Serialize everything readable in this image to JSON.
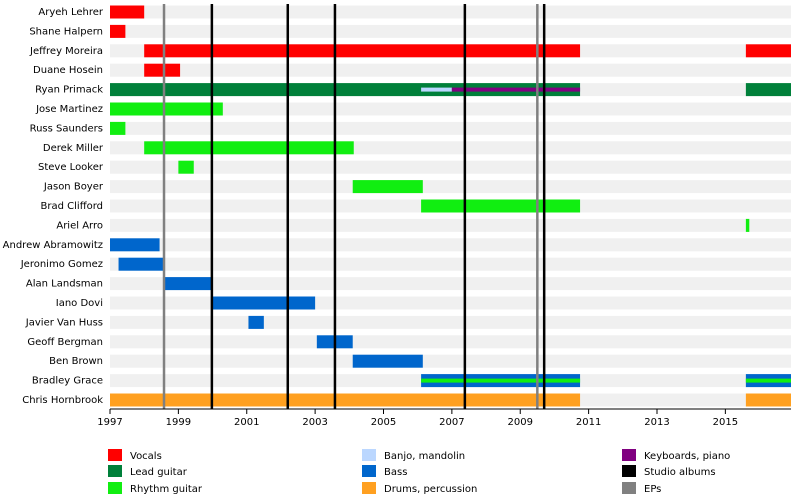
{
  "chart_data": {
    "type": "timeline",
    "xlim": [
      1997,
      2016.92
    ],
    "xticks": [
      1997,
      1999,
      2001,
      2003,
      2005,
      2007,
      2009,
      2011,
      2013,
      2015
    ],
    "roles": [
      {
        "name": "Vocals",
        "color": "#ff0000"
      },
      {
        "name": "Lead guitar",
        "color": "#00803a"
      },
      {
        "name": "Rhythm guitar",
        "color": "#11ee11"
      },
      {
        "name": "Banjo, mandolin",
        "color": "#bbd7ff"
      },
      {
        "name": "Bass",
        "color": "#0066cc"
      },
      {
        "name": "Drums, percussion",
        "color": "#ffa020"
      },
      {
        "name": "Keyboards, piano",
        "color": "#800080"
      }
    ],
    "lines": [
      {
        "name": "Studio albums",
        "color": "#000000",
        "values": [
          1999.98,
          2002.2,
          2003.58,
          2007.38,
          2009.7
        ]
      },
      {
        "name": "EPs",
        "color": "#808080",
        "values": [
          1998.58,
          2009.5
        ]
      }
    ],
    "members": [
      {
        "name": "Aryeh Lehrer",
        "periods": [
          {
            "role": "Vocals",
            "start": 1997,
            "end": 1998
          }
        ]
      },
      {
        "name": "Shane Halpern",
        "periods": [
          {
            "role": "Vocals",
            "start": 1997,
            "end": 1997.45
          }
        ]
      },
      {
        "name": "Jeffrey Moreira",
        "periods": [
          {
            "role": "Vocals",
            "start": 1998,
            "end": 2010.75
          },
          {
            "role": "Vocals",
            "start": 2015.6,
            "end": 2016.92
          }
        ]
      },
      {
        "name": "Duane Hosein",
        "periods": [
          {
            "role": "Vocals",
            "start": 1998,
            "end": 1999.05
          }
        ]
      },
      {
        "name": "Ryan Primack",
        "periods": [
          {
            "role": "Lead guitar",
            "start": 1997,
            "end": 2010.75
          },
          {
            "role": "Lead guitar",
            "start": 2015.6,
            "end": 2016.92
          },
          {
            "role": "Banjo, mandolin",
            "start": 2006.1,
            "end": 2007
          },
          {
            "role": "Keyboards, piano",
            "start": 2007,
            "end": 2010.75
          }
        ]
      },
      {
        "name": "Jose Martinez",
        "periods": [
          {
            "role": "Rhythm guitar",
            "start": 1997,
            "end": 2000.3
          }
        ]
      },
      {
        "name": "Russ Saunders",
        "periods": [
          {
            "role": "Rhythm guitar",
            "start": 1997,
            "end": 1997.45
          }
        ]
      },
      {
        "name": "Derek Miller",
        "periods": [
          {
            "role": "Rhythm guitar",
            "start": 1998,
            "end": 2004.13
          }
        ]
      },
      {
        "name": "Steve Looker",
        "periods": [
          {
            "role": "Rhythm guitar",
            "start": 1999,
            "end": 1999.45
          }
        ]
      },
      {
        "name": "Jason Boyer",
        "periods": [
          {
            "role": "Rhythm guitar",
            "start": 2004.1,
            "end": 2006.15
          }
        ]
      },
      {
        "name": "Brad Clifford",
        "periods": [
          {
            "role": "Rhythm guitar",
            "start": 2006.1,
            "end": 2010.75
          }
        ]
      },
      {
        "name": "Ariel Arro",
        "periods": [
          {
            "role": "Rhythm guitar",
            "start": 2015.6,
            "end": 2015.7
          }
        ]
      },
      {
        "name": "Andrew Abramowitz",
        "periods": [
          {
            "role": "Bass",
            "start": 1997,
            "end": 1998.45
          }
        ]
      },
      {
        "name": "Jeronimo Gomez",
        "periods": [
          {
            "role": "Bass",
            "start": 1997.25,
            "end": 1998.6
          }
        ]
      },
      {
        "name": "Alan Landsman",
        "periods": [
          {
            "role": "Bass",
            "start": 1998.6,
            "end": 2000
          }
        ]
      },
      {
        "name": "Iano Dovi",
        "periods": [
          {
            "role": "Bass",
            "start": 2000,
            "end": 2003
          }
        ]
      },
      {
        "name": "Javier Van Huss",
        "periods": [
          {
            "role": "Bass",
            "start": 2001.05,
            "end": 2001.5
          }
        ]
      },
      {
        "name": "Geoff Bergman",
        "periods": [
          {
            "role": "Bass",
            "start": 2003.05,
            "end": 2004.1
          }
        ]
      },
      {
        "name": "Ben Brown",
        "periods": [
          {
            "role": "Bass",
            "start": 2004.1,
            "end": 2006.15
          }
        ]
      },
      {
        "name": "Bradley Grace",
        "periods": [
          {
            "role": "Bass",
            "start": 2006.1,
            "end": 2010.75
          },
          {
            "role": "Bass",
            "start": 2015.6,
            "end": 2016.92
          },
          {
            "role": "Rhythm guitar",
            "start": 2006.1,
            "end": 2010.75
          },
          {
            "role": "Rhythm guitar",
            "start": 2015.6,
            "end": 2016.92
          }
        ]
      },
      {
        "name": "Chris Hornbrook",
        "periods": [
          {
            "role": "Drums, percussion",
            "start": 1997,
            "end": 2010.75
          },
          {
            "role": "Drums, percussion",
            "start": 2015.6,
            "end": 2016.92
          }
        ]
      }
    ]
  }
}
